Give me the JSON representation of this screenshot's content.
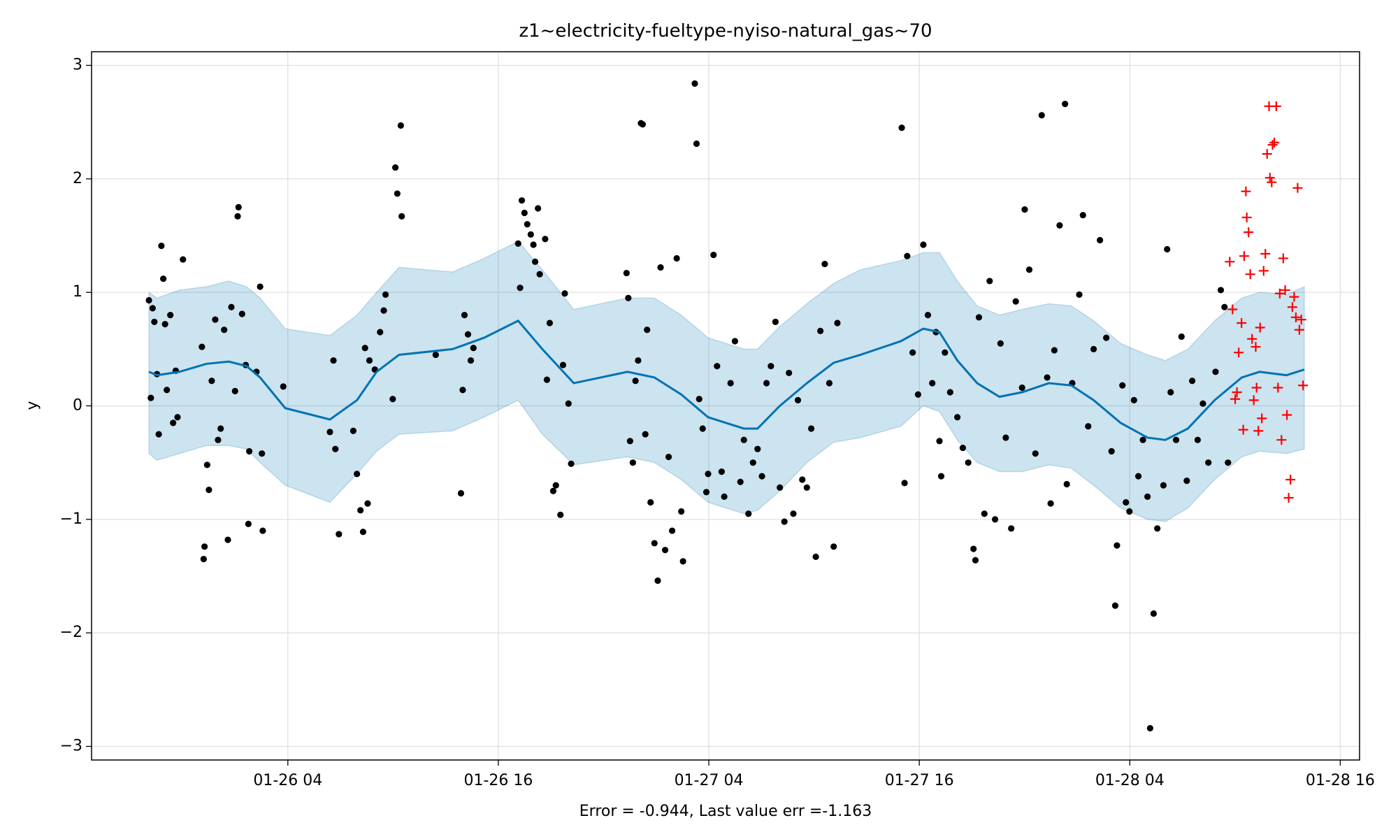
{
  "chart_data": {
    "type": "forecast",
    "title": "z1~electricity-fueltype-nyiso-natural_gas~70",
    "xlabel": "Error = -0.944, Last value err =-1.163",
    "ylabel": "y",
    "grid": true,
    "xlim": [
      -7.19,
      65.1
    ],
    "ylim": [
      -3.12,
      3.12
    ],
    "xticks": [
      {
        "value": 4,
        "label": "01-26 04"
      },
      {
        "value": 16,
        "label": "01-26 16"
      },
      {
        "value": 28,
        "label": "01-27 04"
      },
      {
        "value": 40,
        "label": "01-27 16"
      },
      {
        "value": 52,
        "label": "01-28 04"
      },
      {
        "value": 64,
        "label": "01-28 16"
      }
    ],
    "yticks": [
      {
        "value": -3,
        "label": "−3"
      },
      {
        "value": -2,
        "label": "−2"
      },
      {
        "value": -1,
        "label": "−1"
      },
      0,
      1,
      2,
      3
    ],
    "forecast": {
      "color": "#0072b2",
      "x": [
        -3.92,
        -3.46,
        -2.18,
        -0.65,
        0.63,
        1.65,
        2.42,
        3.85,
        6.4,
        7.94,
        9.06,
        10.34,
        13.4,
        15.19,
        17.13,
        18.51,
        20.3,
        23.36,
        24.9,
        26.43,
        27.96,
        30.0,
        30.78,
        32.05,
        33.59,
        35.12,
        36.65,
        38.95,
        40.23,
        41.15,
        42.17,
        43.3,
        44.57,
        45.86,
        47.39,
        48.67,
        49.94,
        51.48,
        53.01,
        54.03,
        55.31,
        56.84,
        58.38,
        59.4,
        60.93,
        61.95
      ],
      "values": [
        0.3,
        0.27,
        0.3,
        0.37,
        0.39,
        0.35,
        0.25,
        -0.02,
        -0.12,
        0.05,
        0.3,
        0.45,
        0.5,
        0.6,
        0.75,
        0.5,
        0.2,
        0.3,
        0.25,
        0.1,
        -0.1,
        -0.2,
        -0.2,
        0.0,
        0.2,
        0.38,
        0.45,
        0.57,
        0.68,
        0.65,
        0.4,
        0.2,
        0.08,
        0.12,
        0.2,
        0.18,
        0.05,
        -0.15,
        -0.28,
        -0.3,
        -0.2,
        0.05,
        0.25,
        0.3,
        0.27,
        0.32
      ],
      "upper": [
        1.0,
        0.95,
        1.02,
        1.05,
        1.1,
        1.05,
        0.95,
        0.68,
        0.62,
        0.8,
        1.0,
        1.22,
        1.18,
        1.3,
        1.45,
        1.2,
        0.85,
        0.95,
        0.95,
        0.8,
        0.6,
        0.5,
        0.5,
        0.7,
        0.9,
        1.08,
        1.2,
        1.28,
        1.35,
        1.35,
        1.1,
        0.88,
        0.8,
        0.85,
        0.9,
        0.88,
        0.75,
        0.55,
        0.45,
        0.4,
        0.5,
        0.75,
        0.95,
        1.0,
        0.98,
        1.05
      ],
      "lower": [
        -0.42,
        -0.48,
        -0.42,
        -0.35,
        -0.35,
        -0.38,
        -0.5,
        -0.7,
        -0.85,
        -0.6,
        -0.4,
        -0.25,
        -0.22,
        -0.1,
        0.05,
        -0.25,
        -0.52,
        -0.45,
        -0.5,
        -0.65,
        -0.85,
        -0.95,
        -0.92,
        -0.75,
        -0.5,
        -0.32,
        -0.28,
        -0.18,
        0.0,
        -0.05,
        -0.3,
        -0.5,
        -0.58,
        -0.58,
        -0.52,
        -0.55,
        -0.7,
        -0.9,
        -1.0,
        -1.02,
        -0.9,
        -0.65,
        -0.45,
        -0.4,
        -0.42,
        -0.38
      ]
    },
    "observed": {
      "color": "#000000",
      "x": [
        -3.92,
        -3.81,
        -3.71,
        -3.61,
        -3.46,
        -3.36,
        -3.21,
        -3.1,
        -3.0,
        -2.9,
        -2.7,
        -2.54,
        -2.39,
        -2.29,
        -1.98,
        -0.9,
        -0.8,
        -0.75,
        -0.6,
        -0.5,
        -0.34,
        -0.14,
        0.02,
        0.17,
        0.37,
        0.58,
        0.78,
        0.99,
        1.14,
        1.19,
        1.39,
        1.6,
        1.75,
        1.8,
        2.21,
        2.42,
        2.52,
        2.57,
        3.74,
        6.4,
        6.6,
        6.71,
        6.91,
        7.73,
        7.94,
        8.14,
        8.29,
        8.4,
        8.55,
        8.65,
        8.96,
        9.26,
        9.47,
        9.57,
        9.98,
        10.13,
        10.24,
        10.44,
        10.49,
        12.43,
        13.87,
        13.97,
        14.07,
        14.27,
        14.43,
        14.58,
        17.13,
        17.24,
        17.34,
        17.49,
        17.65,
        17.85,
        18.0,
        18.1,
        18.26,
        18.36,
        18.67,
        18.77,
        18.93,
        19.13,
        19.28,
        19.54,
        19.69,
        19.79,
        20.0,
        20.15,
        23.31,
        23.41,
        23.51,
        23.67,
        23.82,
        23.97,
        24.13,
        24.23,
        24.38,
        24.48,
        24.68,
        24.9,
        25.09,
        25.25,
        25.51,
        25.71,
        25.91,
        26.17,
        26.43,
        26.53,
        27.2,
        27.3,
        27.45,
        27.65,
        27.86,
        27.96,
        28.27,
        28.47,
        28.73,
        28.88,
        29.24,
        29.49,
        29.8,
        30.0,
        30.26,
        30.52,
        30.78,
        31.03,
        31.29,
        31.54,
        31.8,
        32.05,
        32.31,
        32.57,
        32.82,
        33.08,
        33.33,
        33.59,
        33.84,
        34.1,
        34.36,
        34.61,
        34.87,
        35.12,
        35.33,
        39.0,
        39.16,
        39.31,
        39.62,
        39.93,
        40.23,
        40.49,
        40.74,
        40.95,
        41.15,
        41.25,
        41.46,
        41.76,
        42.17,
        42.48,
        42.79,
        43.09,
        43.2,
        43.4,
        43.71,
        44.01,
        44.32,
        44.63,
        44.93,
        45.24,
        45.5,
        45.86,
        46.01,
        46.27,
        46.62,
        46.98,
        47.29,
        47.49,
        47.7,
        48.0,
        48.31,
        48.41,
        48.72,
        49.12,
        49.33,
        49.63,
        49.94,
        50.3,
        50.66,
        50.96,
        51.17,
        51.27,
        51.58,
        51.78,
        51.98,
        52.24,
        52.49,
        52.75,
        53.01,
        53.16,
        53.36,
        53.57,
        53.92,
        54.13,
        54.33,
        54.64,
        54.95,
        55.25,
        55.56,
        55.87,
        56.17,
        56.48,
        56.89,
        57.19,
        57.4,
        57.6
      ],
      "values": [
        0.93,
        0.07,
        0.86,
        0.74,
        0.28,
        -0.25,
        1.41,
        1.12,
        0.72,
        0.14,
        0.8,
        -0.15,
        0.31,
        -0.1,
        1.29,
        0.52,
        -1.35,
        -1.24,
        -0.52,
        -0.74,
        0.22,
        0.76,
        -0.3,
        -0.2,
        0.67,
        -1.18,
        0.87,
        0.13,
        1.67,
        1.75,
        0.81,
        0.36,
        -1.04,
        -0.4,
        0.3,
        1.05,
        -0.42,
        -1.1,
        0.17,
        -0.23,
        0.4,
        -0.38,
        -1.13,
        -0.22,
        -0.6,
        -0.92,
        -1.11,
        0.51,
        -0.86,
        0.4,
        0.32,
        0.65,
        0.84,
        0.98,
        0.06,
        2.1,
        1.87,
        2.47,
        1.67,
        0.45,
        -0.77,
        0.14,
        0.8,
        0.63,
        0.4,
        0.51,
        1.43,
        1.04,
        1.81,
        1.7,
        1.6,
        1.51,
        1.42,
        1.27,
        1.74,
        1.16,
        1.47,
        0.23,
        0.73,
        -0.75,
        -0.7,
        -0.96,
        0.36,
        0.99,
        0.02,
        -0.51,
        1.17,
        0.95,
        -0.31,
        -0.5,
        0.22,
        0.4,
        2.49,
        2.48,
        -0.25,
        0.67,
        -0.85,
        -1.21,
        -1.54,
        1.22,
        -1.27,
        -0.45,
        -1.1,
        1.3,
        -0.93,
        -1.37,
        2.84,
        2.31,
        0.06,
        -0.2,
        -0.76,
        -0.6,
        1.33,
        0.35,
        -0.58,
        -0.8,
        0.2,
        0.57,
        -0.67,
        -0.3,
        -0.95,
        -0.5,
        -0.38,
        -0.62,
        0.2,
        0.35,
        0.74,
        -0.72,
        -1.02,
        0.29,
        -0.95,
        0.05,
        -0.65,
        -0.72,
        -0.2,
        -1.33,
        0.66,
        1.25,
        0.2,
        -1.24,
        0.73,
        2.45,
        -0.68,
        1.32,
        0.47,
        0.1,
        1.42,
        0.8,
        0.2,
        0.65,
        -0.31,
        -0.62,
        0.47,
        0.12,
        -0.1,
        -0.37,
        -0.5,
        -1.26,
        -1.36,
        0.78,
        -0.95,
        1.1,
        -1.0,
        0.55,
        -0.28,
        -1.08,
        0.92,
        0.16,
        1.73,
        1.2,
        -0.42,
        2.56,
        0.25,
        -0.86,
        0.49,
        1.59,
        2.66,
        -0.69,
        0.2,
        0.98,
        1.68,
        -0.18,
        0.5,
        1.46,
        0.6,
        -0.4,
        -1.76,
        -1.23,
        0.18,
        -0.85,
        -0.93,
        0.05,
        -0.62,
        -0.3,
        -0.8,
        -2.84,
        -1.83,
        -1.08,
        -0.7,
        1.38,
        0.12,
        -0.3,
        0.61,
        -0.66,
        0.22,
        -0.3,
        0.02,
        -0.5,
        0.3,
        1.02,
        0.87,
        -0.5
      ]
    },
    "future": {
      "color": "#ff0000",
      "x": [
        57.7,
        57.86,
        58.01,
        58.11,
        58.21,
        58.37,
        58.47,
        58.52,
        58.62,
        58.67,
        58.77,
        58.87,
        58.97,
        59.07,
        59.18,
        59.23,
        59.33,
        59.43,
        59.53,
        59.63,
        59.73,
        59.83,
        59.94,
        59.99,
        60.09,
        60.14,
        60.24,
        60.35,
        60.45,
        60.55,
        60.65,
        60.75,
        60.86,
        60.96,
        61.06,
        61.16,
        61.27,
        61.37,
        61.47,
        61.57,
        61.67,
        61.78,
        61.88
      ],
      "values": [
        1.27,
        0.85,
        0.06,
        0.12,
        0.47,
        0.73,
        -0.21,
        1.32,
        1.89,
        1.66,
        1.53,
        1.16,
        0.59,
        0.05,
        0.52,
        0.16,
        -0.22,
        0.69,
        -0.11,
        1.19,
        1.34,
        2.22,
        2.64,
        2.01,
        1.97,
        2.3,
        2.32,
        2.64,
        0.16,
        0.99,
        -0.3,
        1.3,
        1.02,
        -0.08,
        -0.81,
        -0.65,
        0.87,
        0.96,
        0.78,
        1.92,
        0.67,
        0.76,
        0.18
      ]
    }
  }
}
